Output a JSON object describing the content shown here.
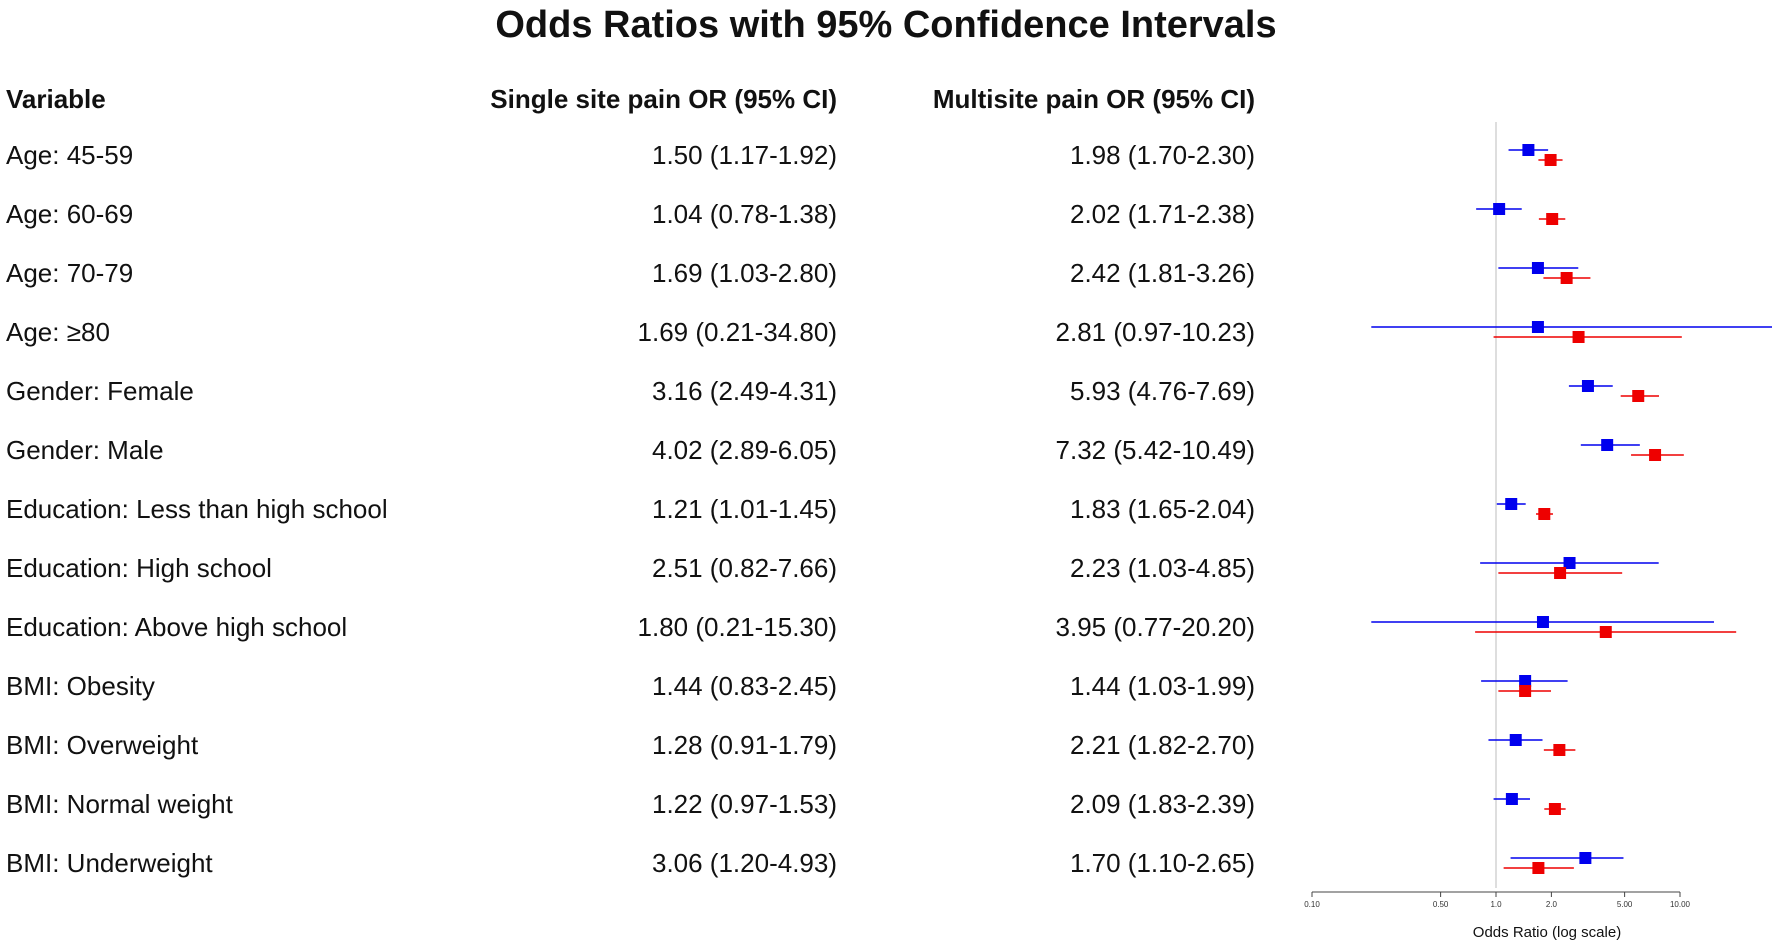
{
  "chart_data": {
    "type": "forest",
    "title": "Odds Ratios with 95% Confidence Intervals",
    "columns": {
      "variable": "Variable",
      "single": "Single site pain OR (95% CI)",
      "multi": "Multisite pain OR (95% CI)"
    },
    "xlabel": "Odds Ratio (log scale)",
    "x_scale": "log",
    "xlim": [
      0.1,
      10.0
    ],
    "x_ticks": [
      0.1,
      0.5,
      1.0,
      2.0,
      5.0,
      10.0
    ],
    "x_tick_labels": [
      "0.10",
      "0.50",
      "1.0",
      "2.0",
      "5.00",
      "10.00"
    ],
    "reference_line": 1.0,
    "series": [
      {
        "name": "Single site pain",
        "color": "#0000ee"
      },
      {
        "name": "Multisite pain",
        "color": "#ee0000"
      }
    ],
    "rows": [
      {
        "label": "Age: 45-59",
        "single_text": "1.50 (1.17-1.92)",
        "multi_text": "1.98 (1.70-2.30)",
        "single": [
          1.5,
          1.17,
          1.92
        ],
        "multi": [
          1.98,
          1.7,
          2.3
        ]
      },
      {
        "label": "Age: 60-69",
        "single_text": "1.04 (0.78-1.38)",
        "multi_text": "2.02 (1.71-2.38)",
        "single": [
          1.04,
          0.78,
          1.38
        ],
        "multi": [
          2.02,
          1.71,
          2.38
        ]
      },
      {
        "label": "Age: 70-79",
        "single_text": "1.69 (1.03-2.80)",
        "multi_text": "2.42 (1.81-3.26)",
        "single": [
          1.69,
          1.03,
          2.8
        ],
        "multi": [
          2.42,
          1.81,
          3.26
        ]
      },
      {
        "label": "Age: ≥80",
        "single_text": "1.69 (0.21-34.80)",
        "multi_text": "2.81 (0.97-10.23)",
        "single": [
          1.69,
          0.21,
          34.8
        ],
        "multi": [
          2.81,
          0.97,
          10.23
        ]
      },
      {
        "label": "Gender: Female",
        "single_text": "3.16 (2.49-4.31)",
        "multi_text": "5.93 (4.76-7.69)",
        "single": [
          3.16,
          2.49,
          4.31
        ],
        "multi": [
          5.93,
          4.76,
          7.69
        ]
      },
      {
        "label": "Gender: Male",
        "single_text": "4.02 (2.89-6.05)",
        "multi_text": "7.32 (5.42-10.49)",
        "single": [
          4.02,
          2.89,
          6.05
        ],
        "multi": [
          7.32,
          5.42,
          10.49
        ]
      },
      {
        "label": "Education: Less than high school",
        "single_text": "1.21 (1.01-1.45)",
        "multi_text": "1.83 (1.65-2.04)",
        "single": [
          1.21,
          1.01,
          1.45
        ],
        "multi": [
          1.83,
          1.65,
          2.04
        ]
      },
      {
        "label": "Education: High school",
        "single_text": "2.51 (0.82-7.66)",
        "multi_text": "2.23 (1.03-4.85)",
        "single": [
          2.51,
          0.82,
          7.66
        ],
        "multi": [
          2.23,
          1.03,
          4.85
        ]
      },
      {
        "label": "Education: Above high school",
        "single_text": "1.80 (0.21-15.30)",
        "multi_text": "3.95 (0.77-20.20)",
        "single": [
          1.8,
          0.21,
          15.3
        ],
        "multi": [
          3.95,
          0.77,
          20.2
        ]
      },
      {
        "label": "BMI: Obesity",
        "single_text": "1.44 (0.83-2.45)",
        "multi_text": "1.44 (1.03-1.99)",
        "single": [
          1.44,
          0.83,
          2.45
        ],
        "multi": [
          1.44,
          1.03,
          1.99
        ]
      },
      {
        "label": "BMI: Overweight",
        "single_text": "1.28 (0.91-1.79)",
        "multi_text": "2.21 (1.82-2.70)",
        "single": [
          1.28,
          0.91,
          1.79
        ],
        "multi": [
          2.21,
          1.82,
          2.7
        ]
      },
      {
        "label": "BMI: Normal weight",
        "single_text": "1.22 (0.97-1.53)",
        "multi_text": "2.09 (1.83-2.39)",
        "single": [
          1.22,
          0.97,
          1.53
        ],
        "multi": [
          2.09,
          1.83,
          2.39
        ]
      },
      {
        "label": "BMI: Underweight",
        "single_text": "3.06 (1.20-4.93)",
        "multi_text": "1.70 (1.10-2.65)",
        "single": [
          3.06,
          1.2,
          4.93
        ],
        "multi": [
          1.7,
          1.1,
          2.65
        ]
      }
    ]
  }
}
